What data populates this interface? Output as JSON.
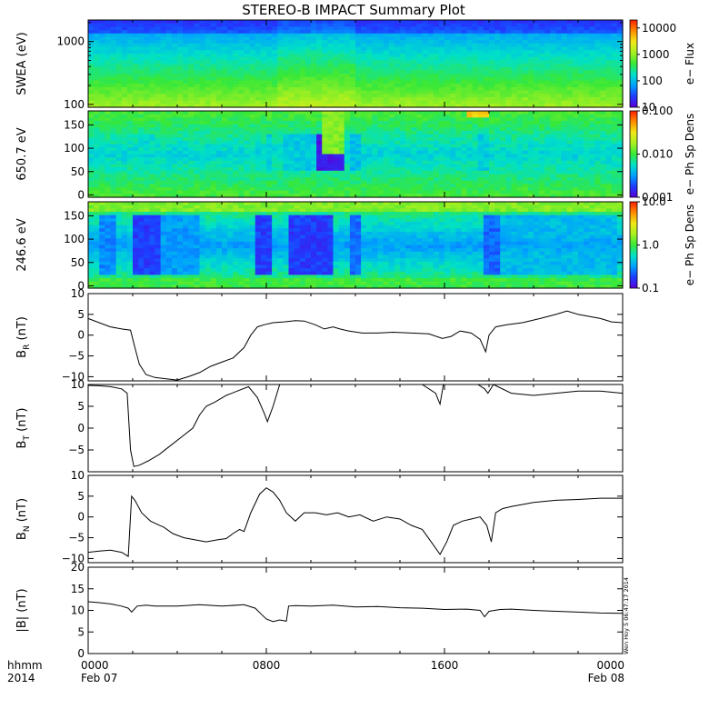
{
  "title": "STEREO-B IMPACT Summary Plot",
  "stamp": "Wen Hoy 5 06:47:17 2014",
  "time_axis": {
    "row1": "hhmm",
    "row2": "2014",
    "ticks": [
      {
        "hour": 0,
        "top": "0000",
        "bottom": "Feb 07"
      },
      {
        "hour": 8,
        "top": "0800",
        "bottom": ""
      },
      {
        "hour": 16,
        "top": "1600",
        "bottom": ""
      },
      {
        "hour": 24,
        "top": "0000",
        "bottom": "Feb 08"
      }
    ]
  },
  "chart_data": [
    {
      "type": "heatmap",
      "id": "swea",
      "ylabel": "SWEA (eV)",
      "yscale": "log",
      "ylim": [
        90,
        2200
      ],
      "yticks": [
        {
          "v": 100,
          "label": "100"
        },
        {
          "v": 1000,
          "label": "1000"
        }
      ],
      "colorbar": {
        "label": "e− Flux",
        "scale": "log",
        "range": [
          10,
          20000
        ],
        "ticks": [
          {
            "v": 10,
            "label": "10"
          },
          {
            "v": 100,
            "label": "100"
          },
          {
            "v": 1000,
            "label": "1000"
          },
          {
            "v": 10000,
            "label": "10000"
          }
        ]
      },
      "colormap": [
        "#5a00d8",
        "#1e3cff",
        "#00a0ff",
        "#00e0c8",
        "#38e838",
        "#a8f020",
        "#f0e818",
        "#ff8c00",
        "#ff1e00"
      ]
    },
    {
      "type": "heatmap",
      "id": "pad650",
      "ylabel": "650.7 eV",
      "yscale": "linear",
      "ylim": [
        -5,
        180
      ],
      "yticks": [
        {
          "v": 0,
          "label": "0"
        },
        {
          "v": 50,
          "label": "50"
        },
        {
          "v": 100,
          "label": "100"
        },
        {
          "v": 150,
          "label": "150"
        }
      ],
      "colorbar": {
        "label": "e− Ph Sp Dens",
        "scale": "log",
        "range": [
          0.001,
          0.1
        ],
        "ticks": [
          {
            "v": 0.001,
            "label": "0.001"
          },
          {
            "v": 0.01,
            "label": "0.010"
          },
          {
            "v": 0.1,
            "label": "0.100"
          }
        ]
      },
      "colormap": [
        "#5a00d8",
        "#1e3cff",
        "#00a0ff",
        "#00e0c8",
        "#38e838",
        "#a8f020",
        "#f0e818",
        "#ff8c00",
        "#ff1e00"
      ]
    },
    {
      "type": "heatmap",
      "id": "pad246",
      "ylabel": "246.6 eV",
      "yscale": "linear",
      "ylim": [
        -5,
        180
      ],
      "yticks": [
        {
          "v": 0,
          "label": "0"
        },
        {
          "v": 50,
          "label": "50"
        },
        {
          "v": 100,
          "label": "100"
        },
        {
          "v": 150,
          "label": "150"
        }
      ],
      "colorbar": {
        "label": "e− Ph Sp Dens",
        "scale": "log",
        "range": [
          0.1,
          10
        ],
        "ticks": [
          {
            "v": 0.1,
            "label": "0.1"
          },
          {
            "v": 1,
            "label": "1.0"
          },
          {
            "v": 10,
            "label": "10.0"
          }
        ]
      },
      "colormap": [
        "#5a00d8",
        "#1e3cff",
        "#00a0ff",
        "#00e0c8",
        "#38e838",
        "#a8f020",
        "#f0e818",
        "#ff8c00",
        "#ff1e00"
      ]
    },
    {
      "type": "line",
      "id": "br",
      "ylabel_main": "B",
      "ylabel_sub": "R",
      "ylabel_tail": " (nT)",
      "ylim": [
        -11,
        10
      ],
      "yticks": [
        {
          "v": -10,
          "label": "−10"
        },
        {
          "v": -5,
          "label": "−5"
        },
        {
          "v": 0,
          "label": "0"
        },
        {
          "v": 5,
          "label": "5"
        },
        {
          "v": 10,
          "label": "10"
        }
      ],
      "x": [
        0,
        0.4,
        1,
        1.5,
        1.9,
        2.1,
        2.3,
        2.6,
        3,
        3.5,
        4,
        4.5,
        5,
        5.5,
        6,
        6.5,
        7,
        7.3,
        7.6,
        7.9,
        8.3,
        8.8,
        9.3,
        9.7,
        10.2,
        10.6,
        11,
        11.3,
        11.7,
        12.3,
        13,
        13.7,
        14.5,
        15.3,
        15.9,
        16.3,
        16.7,
        17.2,
        17.6,
        17.85,
        18,
        18.3,
        18.8,
        19.5,
        20.3,
        21,
        21.5,
        22,
        22.5,
        23,
        23.5,
        24
      ],
      "y": [
        4,
        3.2,
        2,
        1.5,
        1.2,
        -3,
        -7,
        -9.5,
        -10.2,
        -10.5,
        -10.8,
        -10,
        -9,
        -7.5,
        -6.5,
        -5.5,
        -3,
        0,
        2,
        2.5,
        3,
        3.2,
        3.5,
        3.4,
        2.5,
        1.5,
        2,
        1.5,
        1,
        0.5,
        0.5,
        0.7,
        0.5,
        0.3,
        -0.8,
        -0.3,
        1,
        0.5,
        -1,
        -4,
        0,
        2,
        2.5,
        3,
        4,
        5,
        5.8,
        5,
        4.5,
        4,
        3.2,
        3
      ]
    },
    {
      "type": "line",
      "id": "bt",
      "ylabel_main": "B",
      "ylabel_sub": "T",
      "ylabel_tail": " (nT)",
      "ylim": [
        -10,
        10
      ],
      "yticks": [
        {
          "v": -5,
          "label": "−5"
        },
        {
          "v": 0,
          "label": "0"
        },
        {
          "v": 5,
          "label": "5"
        },
        {
          "v": 10,
          "label": "10"
        }
      ],
      "x": [
        0,
        0.5,
        1,
        1.5,
        1.75,
        1.9,
        2.05,
        2.3,
        2.7,
        3.2,
        3.7,
        4.2,
        4.7,
        5,
        5.3,
        5.7,
        6.2,
        6.7,
        7.2,
        7.6,
        7.9,
        8.05,
        8.3,
        8.6,
        9,
        9.5,
        10,
        11,
        12,
        13,
        14,
        15,
        15.6,
        15.8,
        15.95,
        16.2,
        16.6,
        17,
        17.5,
        17.8,
        17.95,
        18.2,
        19,
        20,
        21,
        22,
        23,
        24
      ],
      "y": [
        9.8,
        9.7,
        9.5,
        9,
        8,
        -5,
        -8.8,
        -8.5,
        -7.5,
        -6,
        -4,
        -2,
        0,
        3,
        5,
        6,
        7.5,
        8.5,
        9.5,
        7,
        3.5,
        1.5,
        5,
        10,
        10,
        10,
        10,
        10,
        10,
        10,
        10,
        10,
        8,
        5.5,
        10,
        10,
        10,
        10,
        10,
        9,
        8,
        10,
        8,
        7.5,
        8,
        8.5,
        8.5,
        8
      ]
    },
    {
      "type": "line",
      "id": "bn",
      "ylabel_main": "B",
      "ylabel_sub": "N",
      "ylabel_tail": " (nT)",
      "ylim": [
        -11,
        10
      ],
      "yticks": [
        {
          "v": -10,
          "label": "−10"
        },
        {
          "v": -5,
          "label": "−5"
        },
        {
          "v": 0,
          "label": "0"
        },
        {
          "v": 5,
          "label": "5"
        },
        {
          "v": 10,
          "label": "10"
        }
      ],
      "x": [
        0,
        0.5,
        1,
        1.5,
        1.8,
        1.95,
        2.1,
        2.4,
        2.8,
        3.2,
        3.4,
        3.8,
        4.3,
        4.8,
        5.3,
        5.8,
        6.2,
        6.5,
        6.8,
        7,
        7.3,
        7.7,
        8,
        8.3,
        8.6,
        8.9,
        9.3,
        9.7,
        10.2,
        10.7,
        11.2,
        11.7,
        12.2,
        12.8,
        13.4,
        14,
        14.5,
        15,
        15.4,
        15.8,
        16.1,
        16.4,
        16.8,
        17.2,
        17.6,
        17.9,
        18.1,
        18.3,
        18.6,
        19,
        19.5,
        20,
        21,
        22,
        23,
        24
      ],
      "y": [
        -8.5,
        -8.2,
        -8,
        -8.5,
        -9.5,
        5,
        4,
        1,
        -1,
        -2,
        -2.5,
        -4,
        -5,
        -5.5,
        -6,
        -5.5,
        -5.2,
        -4,
        -3,
        -3.5,
        1,
        5.5,
        7,
        6,
        4,
        1,
        -1,
        1,
        1,
        0.5,
        1,
        0,
        0.5,
        -1,
        0,
        -0.5,
        -2,
        -3,
        -6,
        -9,
        -6,
        -2,
        -1,
        -0.5,
        0,
        -2,
        -6,
        1,
        2,
        2.5,
        3,
        3.5,
        4,
        4.2,
        4.5,
        4.5
      ]
    },
    {
      "type": "line",
      "id": "bmag",
      "ylabel_main": "|B| (nT)",
      "ylim": [
        0,
        20
      ],
      "yticks": [
        {
          "v": 0,
          "label": "0"
        },
        {
          "v": 5,
          "label": "5"
        },
        {
          "v": 10,
          "label": "10"
        },
        {
          "v": 15,
          "label": "15"
        },
        {
          "v": 20,
          "label": "20"
        }
      ],
      "x": [
        0,
        0.5,
        1,
        1.5,
        1.8,
        1.95,
        2.2,
        2.6,
        3,
        4,
        5,
        6,
        7,
        7.5,
        7.8,
        8,
        8.3,
        8.6,
        8.9,
        9,
        9.3,
        10,
        11,
        12,
        13,
        14,
        15,
        16,
        17,
        17.6,
        17.8,
        18,
        18.5,
        19,
        20,
        21,
        22,
        23,
        24
      ],
      "y": [
        12,
        11.8,
        11.5,
        11,
        10.5,
        9.6,
        11,
        11.2,
        11,
        11,
        11.3,
        11,
        11.3,
        10.5,
        9,
        8,
        7.4,
        7.8,
        7.5,
        11,
        11.1,
        11,
        11.2,
        10.8,
        10.9,
        10.6,
        10.5,
        10.2,
        10.3,
        10,
        8.5,
        9.8,
        10.2,
        10.3,
        10,
        9.8,
        9.6,
        9.4,
        9.3
      ]
    }
  ]
}
